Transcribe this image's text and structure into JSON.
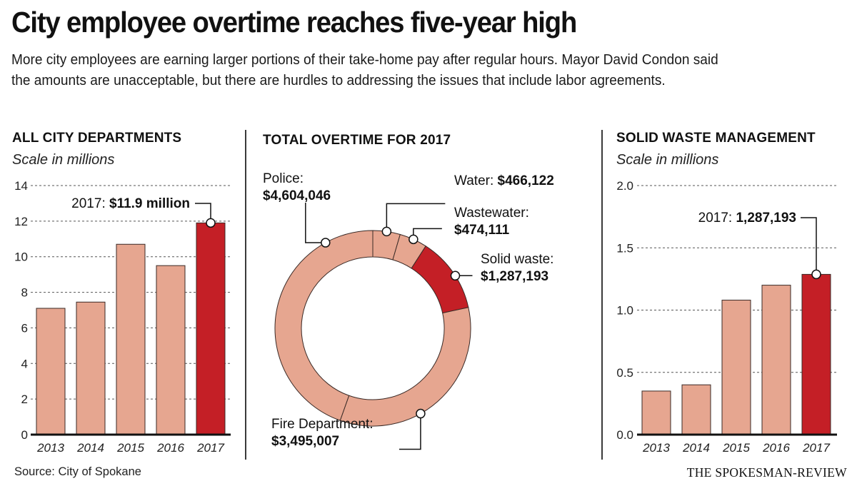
{
  "headline": "City employee overtime reaches five-year high",
  "dek": "More city employees are earning larger portions of their take-home pay after regular hours. Mayor David Condon said the amounts are unacceptable, but there are hurdles to addressing the issues that include labor agreements.",
  "colors": {
    "bar_base": "#e6a690",
    "highlight": "#c41f26",
    "outline": "#3a2a26",
    "text": "#111111"
  },
  "footer": {
    "source": "Source: City of Spokane",
    "credit": "THE SPOKESMAN-REVIEW"
  },
  "chart_data": [
    {
      "type": "bar",
      "title": "ALL CITY DEPARTMENTS",
      "subtitle": "Scale in millions",
      "categories": [
        "2013",
        "2014",
        "2015",
        "2016",
        "2017"
      ],
      "values": [
        7.1,
        7.45,
        10.7,
        9.5,
        11.9
      ],
      "highlight_index": 4,
      "ylim": [
        0,
        14
      ],
      "yticks": [
        0,
        2,
        4,
        6,
        8,
        10,
        12,
        14
      ],
      "ytick_labels": [
        "0",
        "2",
        "4",
        "6",
        "8",
        "10",
        "12",
        "14"
      ],
      "grid": true,
      "xlabel": "",
      "ylabel": "",
      "annotation": {
        "prefix": "2017: ",
        "value": "$11.9 million",
        "index": 4
      }
    },
    {
      "type": "pie",
      "donut": true,
      "title": "TOTAL OVERTIME FOR 2017",
      "slices": [
        {
          "label": "Water:",
          "display": "$466,122",
          "value": 466122,
          "highlight": false
        },
        {
          "label": "Wastewater:",
          "display": "$474,111",
          "value": 474111,
          "highlight": false
        },
        {
          "label": "Solid waste:",
          "display": "$1,287,193",
          "value": 1287193,
          "highlight": true
        },
        {
          "label": "Fire Department:",
          "display": "$3,495,007",
          "value": 3495007,
          "highlight": false
        },
        {
          "label": "Police:",
          "display": "$4,604,046",
          "value": 4604046,
          "highlight": false
        }
      ],
      "start": "top",
      "direction": "clockwise"
    },
    {
      "type": "bar",
      "title": "SOLID WASTE MANAGEMENT",
      "subtitle": "Scale in millions",
      "categories": [
        "2013",
        "2014",
        "2015",
        "2016",
        "2017"
      ],
      "values": [
        0.35,
        0.4,
        1.08,
        1.2,
        1.287
      ],
      "highlight_index": 4,
      "ylim": [
        0,
        2.0
      ],
      "yticks": [
        0,
        0.5,
        1.0,
        1.5,
        2.0
      ],
      "ytick_labels": [
        "0.0",
        "0.5",
        "1.0",
        "1.5",
        "2.0"
      ],
      "grid": true,
      "xlabel": "",
      "ylabel": "",
      "annotation": {
        "prefix": "2017: ",
        "value": "1,287,193",
        "index": 4
      }
    }
  ]
}
